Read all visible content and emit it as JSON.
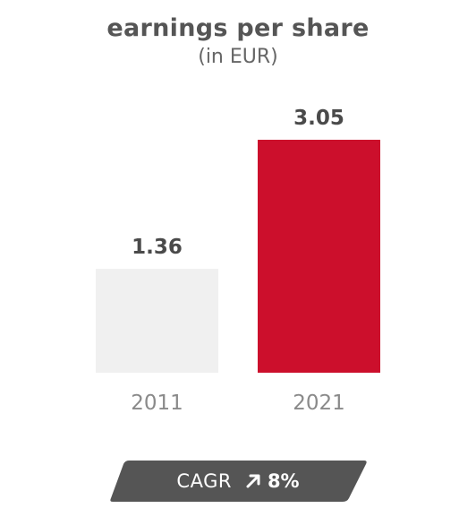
{
  "colors": {
    "bar_2011": "#f0f0f0",
    "bar_2021": "#cc0f2c",
    "badge_bg": "#555555",
    "text_dark": "#4a4a4a",
    "text_tick": "#8a8a8a"
  },
  "chart_data": {
    "type": "bar",
    "title": "earnings per share",
    "subtitle": "(in EUR)",
    "categories": [
      "2011",
      "2021"
    ],
    "values": [
      1.36,
      3.05
    ],
    "value_labels": [
      "1.36",
      "3.05"
    ],
    "xlabel": "",
    "ylabel": "",
    "ylim": [
      0,
      3.05
    ],
    "grid": false
  },
  "cagr": {
    "label": "CAGR",
    "icon": "arrow-up-right-icon",
    "value": "8%"
  }
}
